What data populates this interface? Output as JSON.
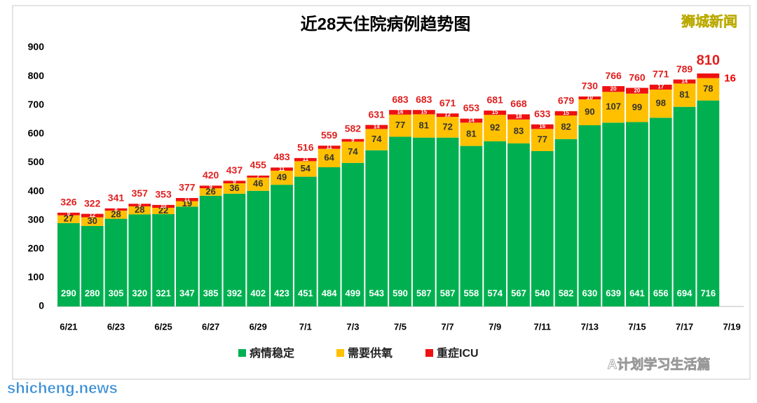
{
  "chart_data": {
    "type": "stacked_bar",
    "title": "近28天住院病例趋势图",
    "watermark": "狮城新闻",
    "footer_brand": "A计划学习生活篇",
    "footer_site": "shicheng.news",
    "categories": [
      "6/21",
      null,
      "6/23",
      null,
      "6/25",
      null,
      "6/27",
      null,
      "6/29",
      null,
      "7/1",
      null,
      "7/3",
      null,
      "7/5",
      null,
      "7/7",
      null,
      "7/9",
      null,
      "7/11",
      null,
      "7/13",
      null,
      "7/15",
      null,
      "7/17",
      null,
      "7/19"
    ],
    "series": [
      {
        "name": "病情稳定",
        "color": "#00b050",
        "values": [
          290,
          280,
          305,
          320,
          321,
          347,
          385,
          392,
          402,
          423,
          451,
          484,
          499,
          543,
          590,
          587,
          587,
          558,
          574,
          567,
          540,
          582,
          630,
          639,
          641,
          656,
          694,
          716,
          null
        ]
      },
      {
        "name": "需要供氧",
        "color": "#ffc000",
        "values": [
          27,
          30,
          28,
          28,
          22,
          19,
          26,
          36,
          46,
          49,
          54,
          64,
          74,
          74,
          77,
          81,
          72,
          81,
          92,
          83,
          77,
          82,
          90,
          107,
          99,
          98,
          81,
          78,
          null
        ]
      },
      {
        "name": "重症ICU",
        "color": "#ee1111",
        "values": [
          9,
          12,
          8,
          9,
          10,
          11,
          9,
          9,
          7,
          11,
          11,
          11,
          9,
          14,
          16,
          15,
          12,
          14,
          15,
          18,
          16,
          15,
          10,
          20,
          20,
          17,
          14,
          16,
          null
        ]
      }
    ],
    "totals": [
      326,
      322,
      341,
      357,
      353,
      377,
      420,
      437,
      455,
      483,
      516,
      559,
      582,
      631,
      683,
      683,
      671,
      653,
      681,
      668,
      633,
      679,
      730,
      766,
      760,
      771,
      789,
      810,
      null
    ],
    "ylim": [
      0,
      900
    ],
    "yticks": [
      0,
      100,
      200,
      300,
      400,
      500,
      600,
      700,
      800,
      900
    ],
    "grid": false,
    "legend": "bottom"
  }
}
